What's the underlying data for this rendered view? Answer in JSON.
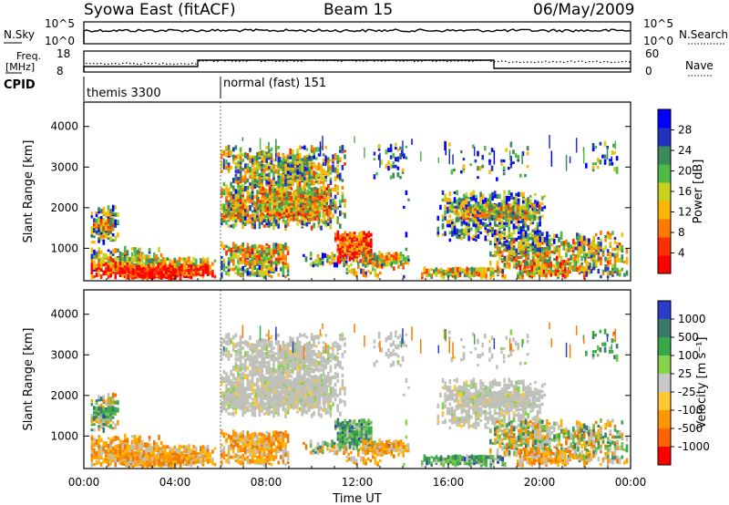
{
  "header": {
    "station": "Syowa East (fitACF)",
    "beam": "Beam 15",
    "date": "06/May/2009"
  },
  "strips": {
    "nsky_label": "N.Sky",
    "nsky_ticks": [
      "10^5",
      "10^0"
    ],
    "nsearch_label": "N.Search",
    "nsearch_ticks": [
      "10^5",
      "10^0"
    ],
    "freq_label_1": "Freq.",
    "freq_label_2": "[MHz]",
    "freq_ticks": [
      "18",
      "8"
    ],
    "nave_label": "Nave",
    "nave_ticks": [
      "60",
      "0"
    ],
    "cpid_label": "CPID",
    "modes": [
      {
        "name": "themis 3300",
        "start_hour": 0,
        "end_hour": 6
      },
      {
        "name": "normal (fast) 151",
        "start_hour": 6,
        "end_hour": 24
      }
    ]
  },
  "chart_data": [
    {
      "type": "heatmap",
      "title": "",
      "ylabel": "Slant Range [km]",
      "xlabel": "",
      "ylim": [
        200,
        4600
      ],
      "yticks": [
        "1000",
        "2000",
        "3000",
        "4000"
      ],
      "colorbar": {
        "label": "Power [dB]",
        "ticks": [
          "4",
          "8",
          "12",
          "16",
          "20",
          "24",
          "28"
        ],
        "colors": [
          "#0000ff",
          "#2233c0",
          "#3a8a5a",
          "#4fbb46",
          "#c8d21e",
          "#ffb400",
          "#ff7800",
          "#ff3000",
          "#ff0000"
        ]
      }
    },
    {
      "type": "heatmap",
      "title": "",
      "ylabel": "Slant Range [km]",
      "xlabel": "Time UT",
      "ylim": [
        200,
        4600
      ],
      "yticks": [
        "1000",
        "2000",
        "3000",
        "4000"
      ],
      "xticks": [
        "00:00",
        "04:00",
        "08:00",
        "12:00",
        "16:00",
        "20:00",
        "00:00"
      ],
      "colorbar": {
        "label": "Velocity [m s⁻¹]",
        "ticks": [
          "1000",
          "500",
          "100",
          "25",
          "-25",
          "-100",
          "-500",
          "-1000"
        ],
        "colors": [
          "#2a3cc8",
          "#3a7a6a",
          "#3aa848",
          "#86d24a",
          "#c8c8c8",
          "#ffc832",
          "#ff9600",
          "#ff6400",
          "#ff0000"
        ]
      }
    }
  ],
  "colors": {
    "power_low": "#1f3fbf",
    "power_mid": "#4faa3a",
    "power_high": "#ff2000",
    "velocity_ground": "#bdbdb8",
    "velocity_toward": "#2a3cc8",
    "velocity_away": "#ff7800"
  }
}
